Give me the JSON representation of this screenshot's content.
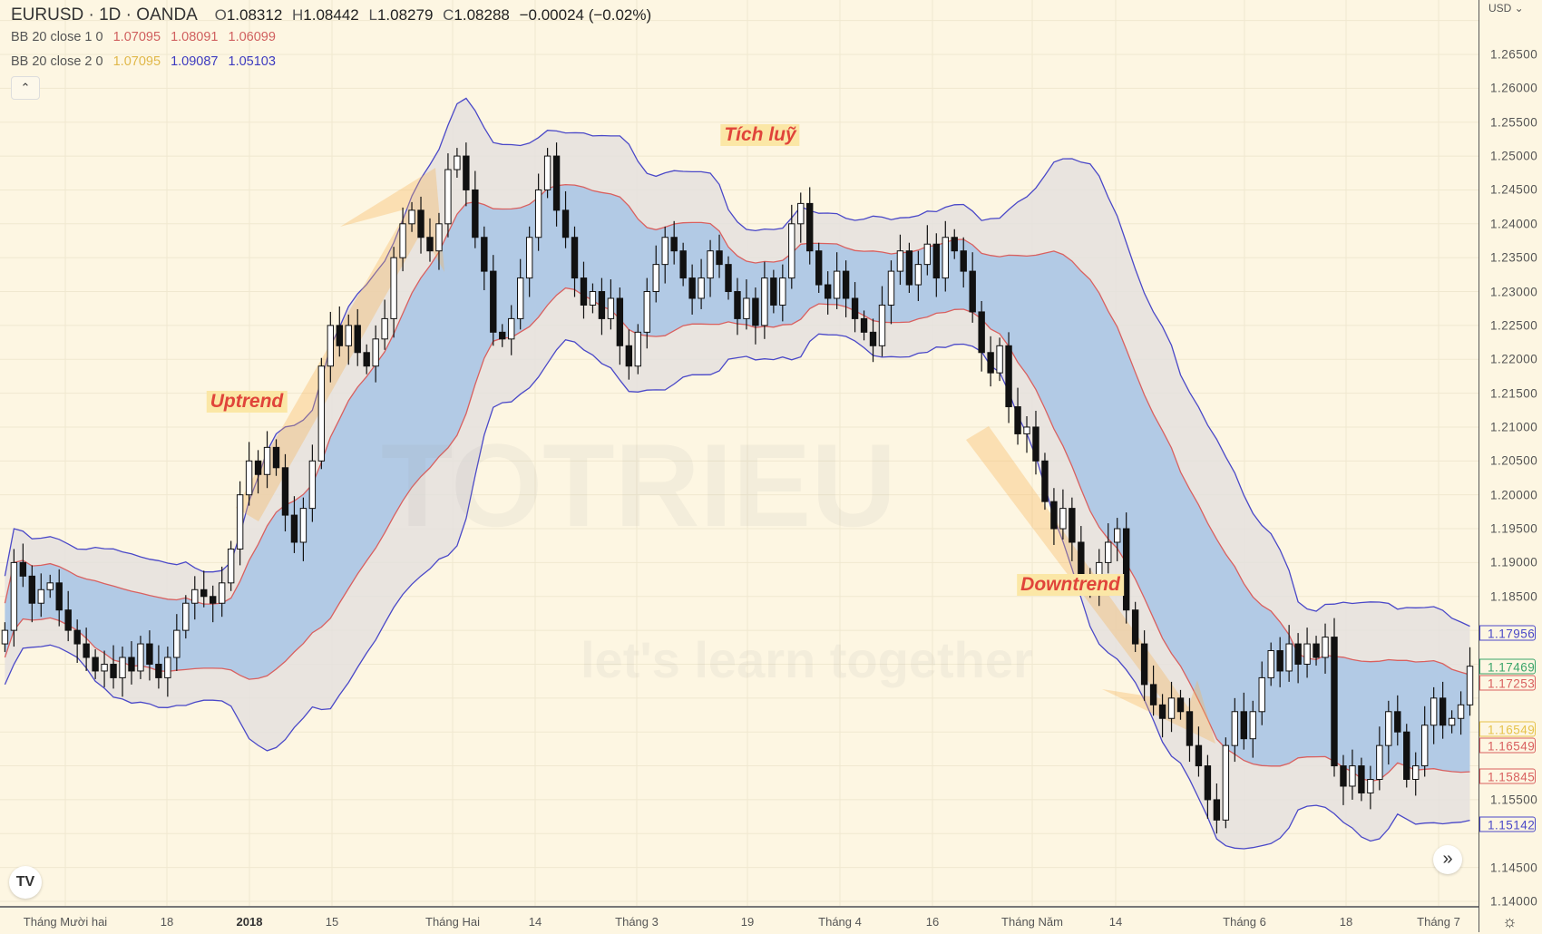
{
  "header": {
    "symbol": "EURUSD · 1D · OANDA",
    "open_label": "O",
    "open": "1.08312",
    "high_label": "H",
    "high": "1.08442",
    "low_label": "L",
    "low": "1.08279",
    "close_label": "C",
    "close": "1.08288",
    "change": "−0.00024 (−0.02%)"
  },
  "indicators": [
    {
      "label": "BB 20 close 1 0",
      "values": [
        "1.07095",
        "1.08091",
        "1.06099"
      ],
      "colors": [
        "#d0605f",
        "#d0605f",
        "#d0605f"
      ]
    },
    {
      "label": "BB 20 close 2 0",
      "values": [
        "1.07095",
        "1.09087",
        "1.05103"
      ],
      "colors": [
        "#e0b84a",
        "#3d3bbf",
        "#3d3bbf"
      ]
    }
  ],
  "collapse_icon": "chevron-up-icon",
  "collapse_glyph": "⌃",
  "price_axis": {
    "currency": "USD ⌄",
    "min": 1.14,
    "max": 1.27,
    "step": 0.005,
    "badges": [
      {
        "value": "1.17956",
        "color": "#4a48c8"
      },
      {
        "value": "1.17469",
        "color": "#3aa56a"
      },
      {
        "value": "1.17253",
        "color": "#d9605f"
      },
      {
        "value": "1.16549",
        "color": "#e6c34a"
      },
      {
        "value": "1.16549",
        "color": "#d9605f"
      },
      {
        "value": "1.15845",
        "color": "#d9605f"
      },
      {
        "value": "1.15142",
        "color": "#4a48c8"
      }
    ]
  },
  "time_axis": [
    "Tháng Mười hai",
    "18",
    "2018",
    "15",
    "Tháng Hai",
    "14",
    "Tháng 3",
    "19",
    "Tháng 4",
    "16",
    "Tháng Năm",
    "14",
    "Tháng 6",
    "18",
    "Tháng 7"
  ],
  "annotations": {
    "consolidation": "Tích luỹ",
    "uptrend": "Uptrend",
    "downtrend": "Downtrend"
  },
  "watermark": {
    "brand": "TOTRIEU",
    "slogan": "let's learn together"
  },
  "logo": "TV",
  "scroll_glyph": "»",
  "settings_glyph": "☼",
  "colors": {
    "background": "#fdf6e2",
    "bb1": "#d9605f",
    "bb2": "#4a48c8",
    "inner_fill": "#a8c6e6",
    "outer_fill": "#e3e0df"
  },
  "chart_data": {
    "type": "candlestick",
    "bb_period": 20,
    "closes": [
      1.18,
      1.19,
      1.188,
      1.184,
      1.186,
      1.187,
      1.183,
      1.18,
      1.178,
      1.176,
      1.174,
      1.175,
      1.173,
      1.176,
      1.174,
      1.178,
      1.175,
      1.173,
      1.176,
      1.18,
      1.184,
      1.186,
      1.185,
      1.184,
      1.187,
      1.192,
      1.2,
      1.205,
      1.203,
      1.207,
      1.204,
      1.197,
      1.193,
      1.198,
      1.205,
      1.219,
      1.225,
      1.222,
      1.225,
      1.221,
      1.219,
      1.223,
      1.226,
      1.235,
      1.24,
      1.242,
      1.238,
      1.236,
      1.24,
      1.248,
      1.25,
      1.245,
      1.238,
      1.233,
      1.224,
      1.223,
      1.226,
      1.232,
      1.238,
      1.245,
      1.25,
      1.242,
      1.238,
      1.232,
      1.228,
      1.23,
      1.226,
      1.229,
      1.222,
      1.219,
      1.224,
      1.23,
      1.234,
      1.238,
      1.236,
      1.232,
      1.229,
      1.232,
      1.236,
      1.234,
      1.23,
      1.226,
      1.229,
      1.225,
      1.232,
      1.228,
      1.232,
      1.24,
      1.243,
      1.236,
      1.231,
      1.229,
      1.233,
      1.229,
      1.226,
      1.224,
      1.222,
      1.228,
      1.233,
      1.236,
      1.231,
      1.234,
      1.237,
      1.232,
      1.238,
      1.236,
      1.233,
      1.227,
      1.221,
      1.218,
      1.222,
      1.213,
      1.209,
      1.21,
      1.205,
      1.199,
      1.195,
      1.198,
      1.193,
      1.188,
      1.186,
      1.19,
      1.193,
      1.195,
      1.183,
      1.178,
      1.172,
      1.169,
      1.167,
      1.17,
      1.168,
      1.163,
      1.16,
      1.155,
      1.152,
      1.163,
      1.168,
      1.164,
      1.168,
      1.173,
      1.177,
      1.174,
      1.178,
      1.175,
      1.178,
      1.176,
      1.179,
      1.16,
      1.157,
      1.16,
      1.156,
      1.158,
      1.163,
      1.168,
      1.165,
      1.158,
      1.16,
      1.166,
      1.17,
      1.166,
      1.167,
      1.169,
      1.1747
    ]
  }
}
